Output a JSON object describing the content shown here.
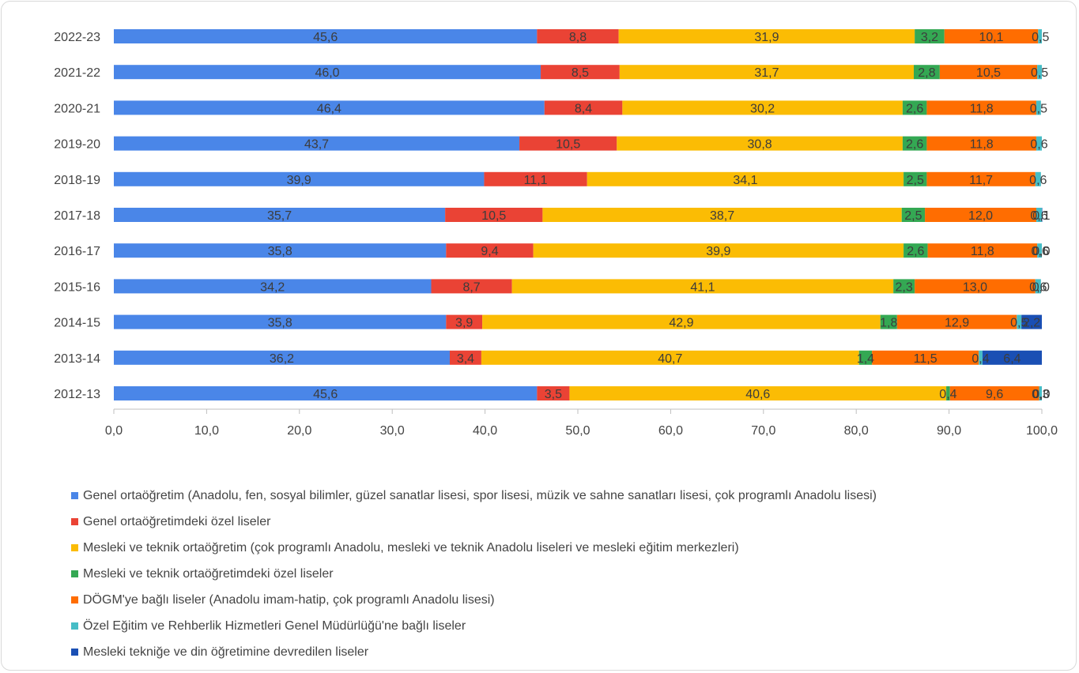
{
  "chart_data": {
    "type": "bar",
    "orientation": "horizontal",
    "stacked": true,
    "categories": [
      "2022-23",
      "2021-22",
      "2020-21",
      "2019-20",
      "2018-19",
      "2017-18",
      "2016-17",
      "2015-16",
      "2014-15",
      "2013-14",
      "2012-13"
    ],
    "series": [
      {
        "name": "Genel ortaöğretim (Anadolu, fen, sosyal bilimler, güzel sanatlar lisesi, spor lisesi, müzik ve sahne sanatları lisesi, çok programlı Anadolu lisesi)",
        "color": "#4a86e8",
        "values": [
          45.6,
          46.0,
          46.4,
          43.7,
          39.9,
          35.7,
          35.8,
          34.2,
          35.8,
          36.2,
          45.6
        ],
        "labels": [
          "45,6",
          "46,0",
          "46,4",
          "43,7",
          "39,9",
          "35,7",
          "35,8",
          "34,2",
          "35,8",
          "36,2",
          "45,6"
        ]
      },
      {
        "name": "Genel ortaöğretimdeki özel liseler",
        "color": "#ea4335",
        "values": [
          8.8,
          8.5,
          8.4,
          10.5,
          11.1,
          10.5,
          9.4,
          8.7,
          3.9,
          3.4,
          3.5
        ],
        "labels": [
          "8,8",
          "8,5",
          "8,4",
          "10,5",
          "11,1",
          "10,5",
          "9,4",
          "8,7",
          "3,9",
          "3,4",
          "3,5"
        ]
      },
      {
        "name": "Mesleki ve teknik ortaöğretim (çok programlı Anadolu, mesleki ve teknik Anadolu liseleri ve mesleki eğitim merkezleri)",
        "color": "#fbbc04",
        "values": [
          31.9,
          31.7,
          30.2,
          30.8,
          34.1,
          38.7,
          39.9,
          41.1,
          42.9,
          40.7,
          40.6
        ],
        "labels": [
          "31,9",
          "31,7",
          "30,2",
          "30,8",
          "34,1",
          "38,7",
          "39,9",
          "41,1",
          "42,9",
          "40,7",
          "40,6"
        ]
      },
      {
        "name": "Mesleki ve teknik ortaöğretimdeki özel liseler",
        "color": "#34a853",
        "values": [
          3.2,
          2.8,
          2.6,
          2.6,
          2.5,
          2.5,
          2.6,
          2.3,
          1.8,
          1.4,
          0.4
        ],
        "labels": [
          "3,2",
          "2,8",
          "2,6",
          "2,6",
          "2,5",
          "2,5",
          "2,6",
          "2,3",
          "1,8",
          "1,4",
          "0,4"
        ]
      },
      {
        "name": "DÖGM'ye bağlı liseler (Anadolu imam-hatip, çok programlı Anadolu lisesi)",
        "color": "#ff6d01",
        "values": [
          10.1,
          10.5,
          11.8,
          11.8,
          11.7,
          12.0,
          11.8,
          13.0,
          12.9,
          11.5,
          9.6
        ],
        "labels": [
          "10,1",
          "10,5",
          "11,8",
          "11,8",
          "11,7",
          "12,0",
          "11,8",
          "13,0",
          "12,9",
          "11,5",
          "9,6"
        ]
      },
      {
        "name": "Özel Eğitim ve Rehberlik Hizmetleri Genel Müdürlüğü'ne bağlı liseler",
        "color": "#46bdc6",
        "values": [
          0.5,
          0.5,
          0.5,
          0.6,
          0.6,
          0.6,
          0.6,
          0.6,
          0.5,
          0.4,
          0.3
        ],
        "labels": [
          "0,5",
          "0,5",
          "0,5",
          "0,6",
          "0,6",
          "0,6",
          "0,6",
          "0,6",
          "0,5",
          "0,4",
          "0,3"
        ]
      },
      {
        "name": "Mesleki tekniğe ve din öğretimine devredilen liseler",
        "color": "#1a4fb4",
        "values": [
          0,
          0,
          0,
          0,
          0,
          0.1,
          0.0,
          0.0,
          2.2,
          6.4,
          0.0
        ],
        "labels": [
          "",
          "",
          "",
          "",
          "",
          "0,1",
          "0,0",
          "0,0",
          "2,2",
          "6,4",
          "0,0"
        ]
      }
    ],
    "xlim": [
      0,
      100
    ],
    "xticks": [
      0,
      10,
      20,
      30,
      40,
      50,
      60,
      70,
      80,
      90,
      100
    ],
    "xtick_labels": [
      "0,0",
      "10,0",
      "20,0",
      "30,0",
      "40,0",
      "50,0",
      "60,0",
      "70,0",
      "80,0",
      "90,0",
      "100,0"
    ],
    "title": "",
    "xlabel": "",
    "ylabel": "",
    "grid": false,
    "legend_position": "bottom"
  }
}
